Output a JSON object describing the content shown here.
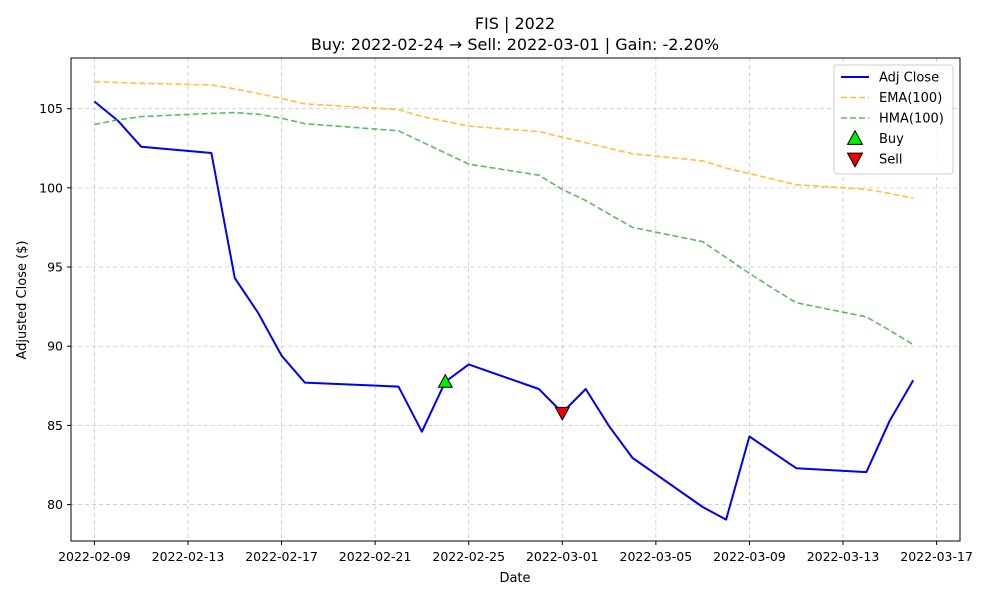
{
  "chart_data": {
    "type": "line",
    "title": "FIS | 2022",
    "subtitle": "Buy: 2022-02-24  →  Sell: 2022-03-01  |  Gain: -2.20%",
    "xlabel": "Date",
    "ylabel": "Adjusted Close ($)",
    "xlim": [
      "2022-02-08",
      "2022-03-18"
    ],
    "ylim": [
      77.7,
      108.2
    ],
    "x_ticks": [
      "2022-02-09",
      "2022-02-13",
      "2022-02-17",
      "2022-02-21",
      "2022-02-25",
      "2022-03-01",
      "2022-03-05",
      "2022-03-09",
      "2022-03-13",
      "2022-03-17"
    ],
    "y_ticks": [
      80,
      85,
      90,
      95,
      100,
      105
    ],
    "grid": true,
    "legend_position": "top-right",
    "series": [
      {
        "name": "Adj Close",
        "color": "#0000ee",
        "style": "solid",
        "x": [
          "2022-02-09",
          "2022-02-10",
          "2022-02-11",
          "2022-02-14",
          "2022-02-15",
          "2022-02-16",
          "2022-02-17",
          "2022-02-18",
          "2022-02-22",
          "2022-02-23",
          "2022-02-24",
          "2022-02-25",
          "2022-02-28",
          "2022-03-01",
          "2022-03-02",
          "2022-03-03",
          "2022-03-04",
          "2022-03-07",
          "2022-03-08",
          "2022-03-09",
          "2022-03-10",
          "2022-03-11",
          "2022-03-14",
          "2022-03-15",
          "2022-03-16"
        ],
        "values": [
          105.45,
          104.25,
          102.6,
          102.2,
          94.3,
          92.1,
          89.4,
          87.7,
          87.45,
          84.6,
          87.75,
          88.85,
          87.3,
          85.8,
          87.3,
          84.95,
          82.95,
          79.85,
          79.05,
          84.3,
          83.3,
          82.3,
          82.05,
          85.3,
          87.85
        ]
      },
      {
        "name": "EMA(100)",
        "color": "#ffaa00",
        "style": "dashed",
        "x": [
          "2022-02-09",
          "2022-02-10",
          "2022-02-11",
          "2022-02-14",
          "2022-02-15",
          "2022-02-16",
          "2022-02-17",
          "2022-02-18",
          "2022-02-22",
          "2022-02-23",
          "2022-02-24",
          "2022-02-25",
          "2022-02-28",
          "2022-03-01",
          "2022-03-02",
          "2022-03-03",
          "2022-03-04",
          "2022-03-07",
          "2022-03-08",
          "2022-03-09",
          "2022-03-10",
          "2022-03-11",
          "2022-03-14",
          "2022-03-15",
          "2022-03-16"
        ],
        "values": [
          106.7,
          106.65,
          106.6,
          106.5,
          106.25,
          105.95,
          105.65,
          105.3,
          104.95,
          104.5,
          104.2,
          103.9,
          103.55,
          103.2,
          102.85,
          102.5,
          102.15,
          101.7,
          101.25,
          100.9,
          100.55,
          100.2,
          99.9,
          99.65,
          99.35
        ]
      },
      {
        "name": "HMA(100)",
        "color": "#2ca02c",
        "style": "dashed",
        "x": [
          "2022-02-09",
          "2022-02-10",
          "2022-02-11",
          "2022-02-14",
          "2022-02-15",
          "2022-02-16",
          "2022-02-17",
          "2022-02-18",
          "2022-02-22",
          "2022-02-23",
          "2022-02-24",
          "2022-02-25",
          "2022-02-28",
          "2022-03-01",
          "2022-03-02",
          "2022-03-03",
          "2022-03-04",
          "2022-03-07",
          "2022-03-08",
          "2022-03-09",
          "2022-03-10",
          "2022-03-11",
          "2022-03-14",
          "2022-03-15",
          "2022-03-16"
        ],
        "values": [
          104.0,
          104.3,
          104.5,
          104.7,
          104.75,
          104.65,
          104.4,
          104.05,
          103.6,
          102.9,
          102.2,
          101.5,
          100.8,
          99.9,
          99.2,
          98.35,
          97.5,
          96.6,
          95.6,
          94.6,
          93.65,
          92.75,
          91.85,
          91.0,
          90.1
        ]
      }
    ],
    "markers": [
      {
        "name": "Buy",
        "x": "2022-02-24",
        "y": 87.75,
        "symbol": "triangle-up",
        "color": "#00ee00"
      },
      {
        "name": "Sell",
        "x": "2022-03-01",
        "y": 85.8,
        "symbol": "triangle-down",
        "color": "#ee0000"
      }
    ]
  }
}
